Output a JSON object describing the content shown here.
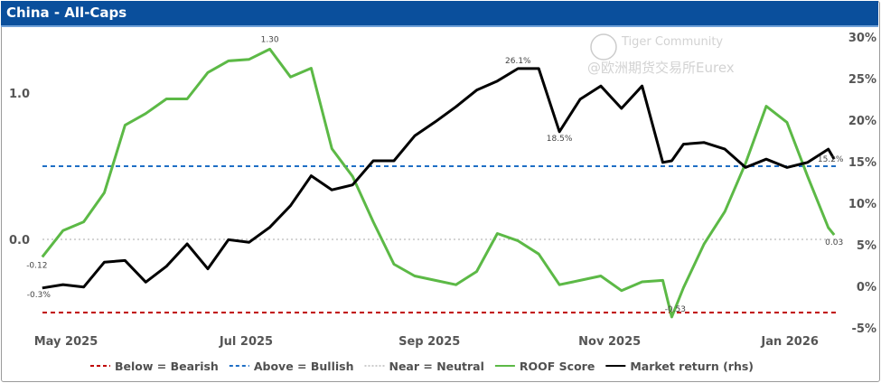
{
  "header": {
    "title": "China - All-Caps"
  },
  "watermark": {
    "line1": "Tiger Community",
    "line2": "@欧洲期货交易所Eurex"
  },
  "chart_data": {
    "type": "line",
    "title": "China - All-Caps",
    "x": [
      "2025-04-23",
      "2025-04-30",
      "2025-05-07",
      "2025-05-14",
      "2025-05-21",
      "2025-05-28",
      "2025-06-04",
      "2025-06-11",
      "2025-06-18",
      "2025-06-25",
      "2025-07-02",
      "2025-07-09",
      "2025-07-16",
      "2025-07-23",
      "2025-07-30",
      "2025-08-06",
      "2025-08-13",
      "2025-08-20",
      "2025-08-27",
      "2025-09-03",
      "2025-09-10",
      "2025-09-17",
      "2025-09-24",
      "2025-10-01",
      "2025-10-08",
      "2025-10-15",
      "2025-10-22",
      "2025-10-29",
      "2025-11-05",
      "2025-11-12",
      "2025-11-19",
      "2025-11-22",
      "2025-11-26",
      "2025-12-03",
      "2025-12-10",
      "2025-12-17",
      "2025-12-24",
      "2025-12-31",
      "2026-01-07",
      "2026-01-14",
      "2026-01-16"
    ],
    "series": [
      {
        "name": "ROOF Score",
        "axis": "left",
        "color": "#5cb946",
        "values": [
          -0.12,
          0.06,
          0.12,
          0.32,
          0.78,
          0.86,
          0.96,
          0.96,
          1.14,
          1.22,
          1.23,
          1.3,
          1.11,
          1.17,
          0.62,
          0.43,
          0.12,
          -0.17,
          -0.25,
          -0.28,
          -0.31,
          -0.22,
          0.04,
          -0.01,
          -0.1,
          -0.31,
          -0.28,
          -0.25,
          -0.35,
          -0.29,
          -0.28,
          -0.53,
          -0.33,
          -0.03,
          0.19,
          0.52,
          0.91,
          0.8,
          0.43,
          0.08,
          0.03
        ]
      },
      {
        "name": "Market return (rhs)",
        "axis": "right",
        "color": "#000000",
        "values": [
          -0.3,
          0.1,
          -0.2,
          2.8,
          3.0,
          0.4,
          2.3,
          5.0,
          2.0,
          5.5,
          5.2,
          7.0,
          9.6,
          13.2,
          11.5,
          12.1,
          15.0,
          15.0,
          18.0,
          19.7,
          21.5,
          23.5,
          24.6,
          26.1,
          26.1,
          18.5,
          22.4,
          24.0,
          21.3,
          24.0,
          14.8,
          15.0,
          17.0,
          17.2,
          16.4,
          14.2,
          15.2,
          14.2,
          14.8,
          16.4,
          15.2
        ]
      }
    ],
    "reference_lines": [
      {
        "name": "Below = Bearish",
        "value": -0.5,
        "color": "#c00000",
        "style": "dashed"
      },
      {
        "name": "Above = Bullish",
        "value": 0.5,
        "color": "#1f6fc5",
        "style": "dashed"
      },
      {
        "name": "Near = Neutral",
        "value": 0.0,
        "color": "#bbbbbb",
        "style": "dotted"
      }
    ],
    "left_axis": {
      "ticks": [
        0.0,
        1.0
      ],
      "tick_labels": [
        "0.0",
        "1.0"
      ]
    },
    "right_axis": {
      "ticks": [
        -5,
        0,
        5,
        10,
        15,
        20,
        25,
        30
      ],
      "tick_labels": [
        "-5%",
        "0%",
        "5%",
        "10%",
        "15%",
        "20%",
        "25%",
        "30%"
      ]
    },
    "x_ticks": [
      {
        "date": "2025-05-01",
        "label": "May 2025"
      },
      {
        "date": "2025-07-01",
        "label": "Jul 2025"
      },
      {
        "date": "2025-09-01",
        "label": "Sep 2025"
      },
      {
        "date": "2025-11-01",
        "label": "Nov 2025"
      },
      {
        "date": "2026-01-01",
        "label": "Jan 2026"
      }
    ],
    "annotations": [
      {
        "series": 0,
        "date": "2025-07-09",
        "label": "1.30"
      },
      {
        "series": 0,
        "date": "2025-04-23",
        "label": "-0.12"
      },
      {
        "series": 0,
        "date": "2025-11-22",
        "label": "-0.53"
      },
      {
        "series": 0,
        "date": "2026-01-16",
        "label": "0.03"
      },
      {
        "series": 1,
        "date": "2025-04-23",
        "label": "-0.3%"
      },
      {
        "series": 1,
        "date": "2025-10-01",
        "label": "26.1%"
      },
      {
        "series": 1,
        "date": "2025-10-15",
        "label": "18.5%"
      },
      {
        "series": 1,
        "date": "2026-01-16",
        "label": "15.2%"
      }
    ],
    "legend": {
      "position": "bottom",
      "items": [
        "Below = Bearish",
        "Above = Bullish",
        "Near = Neutral",
        "ROOF Score",
        "Market return (rhs)"
      ]
    },
    "grid": false
  }
}
